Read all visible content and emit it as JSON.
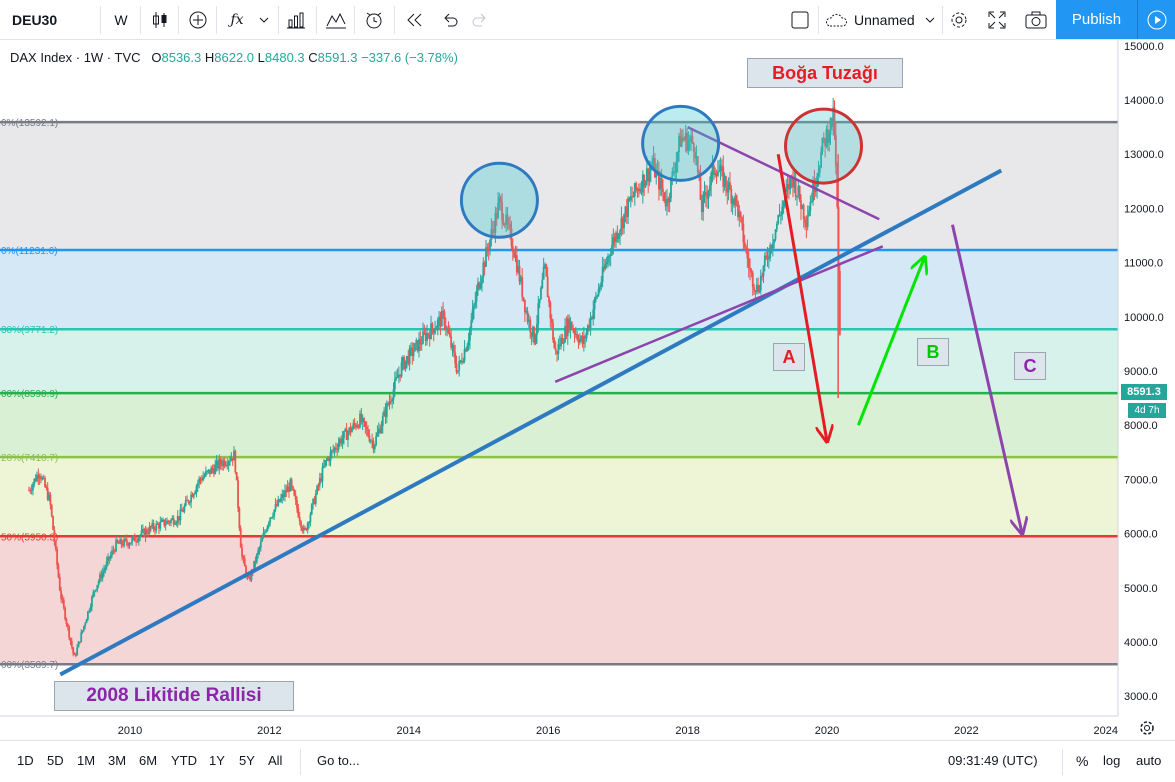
{
  "toolbar": {
    "symbol": "DEU30",
    "interval": "W",
    "layout_name": "Unnamed",
    "publish_label": "Publish"
  },
  "legend": {
    "title": "DAX Index · 1W · TVC",
    "o_label": "O",
    "o": "8536.3",
    "h_label": "H",
    "h": "8622.0",
    "l_label": "L",
    "l": "8480.3",
    "c_label": "C",
    "c": "8591.3",
    "change": "−337.6 (−3.78%)"
  },
  "price_badge": "8591.3",
  "countdown_badge": "4d 7h",
  "bottom": {
    "ranges": [
      "1D",
      "5D",
      "1M",
      "3M",
      "6M",
      "YTD",
      "1Y",
      "5Y",
      "All"
    ],
    "goto": "Go to...",
    "time": "09:31:49 (UTC)",
    "percent": "%",
    "log": "log",
    "auto": "auto"
  },
  "annotations": {
    "bull_trap": "Boğa Tuzağı",
    "rally": "2008 Likitide Rallisi",
    "a": "A",
    "b": "B",
    "c": "C"
  },
  "colors": {
    "up": "#26a69a",
    "down": "#ef5350",
    "trend_blue": "#2e7ac0",
    "triangle_purple": "#8e44ad",
    "arrow_red": "#e51c23",
    "arrow_green": "#00e600",
    "circle_blue": "#2e7ac0",
    "circle_red": "#cc3333"
  },
  "chart_data": {
    "type": "candlestick",
    "title": "DAX Index · 1W · TVC",
    "y_axis": {
      "min": 2600,
      "max": 15300,
      "ticks": [
        3000,
        4000,
        5000,
        6000,
        7000,
        8000,
        9000,
        10000,
        11000,
        12000,
        13000,
        14000,
        15000
      ]
    },
    "x_axis": {
      "start": 2008.55,
      "end": 2024.0,
      "ticks": [
        2010,
        2012,
        2014,
        2016,
        2018,
        2020,
        2022,
        2024
      ]
    },
    "fib_levels": [
      {
        "label": "0%(13592.1)",
        "value": 13592.1,
        "color": "#787b86"
      },
      {
        "label": "0%(11231.6)",
        "value": 11231.6,
        "color": "#2196f3"
      },
      {
        "label": "30%(9771.2)",
        "value": 9771.2,
        "color": "#26c6b0"
      },
      {
        "label": "00%(8590.9)",
        "value": 8590.9,
        "color": "#22b14c"
      },
      {
        "label": "20%(7410.7)",
        "value": 7410.7,
        "color": "#8bc34a"
      },
      {
        "label": "50%(5950.3)",
        "value": 5950.3,
        "color": "#e53935"
      },
      {
        "label": "00%(3589.7)",
        "value": 3589.7,
        "color": "#787b86"
      }
    ],
    "price_path": [
      [
        2008.55,
        6800
      ],
      [
        2008.7,
        7150
      ],
      [
        2008.85,
        6600
      ],
      [
        2009.0,
        4900
      ],
      [
        2009.2,
        3700
      ],
      [
        2009.5,
        5000
      ],
      [
        2009.8,
        5800
      ],
      [
        2010.0,
        5850
      ],
      [
        2010.3,
        6100
      ],
      [
        2010.7,
        6300
      ],
      [
        2011.0,
        7000
      ],
      [
        2011.3,
        7300
      ],
      [
        2011.5,
        7450
      ],
      [
        2011.6,
        5600
      ],
      [
        2011.7,
        5100
      ],
      [
        2012.0,
        6300
      ],
      [
        2012.3,
        6900
      ],
      [
        2012.5,
        6000
      ],
      [
        2012.8,
        7300
      ],
      [
        2013.0,
        7700
      ],
      [
        2013.3,
        8100
      ],
      [
        2013.5,
        7650
      ],
      [
        2013.9,
        9100
      ],
      [
        2014.2,
        9600
      ],
      [
        2014.5,
        10000
      ],
      [
        2014.7,
        9000
      ],
      [
        2014.85,
        9600
      ],
      [
        2015.0,
        10600
      ],
      [
        2015.3,
        12100
      ],
      [
        2015.5,
        11300
      ],
      [
        2015.7,
        10000
      ],
      [
        2015.8,
        9600
      ],
      [
        2015.95,
        10900
      ],
      [
        2016.1,
        9300
      ],
      [
        2016.3,
        9900
      ],
      [
        2016.5,
        9500
      ],
      [
        2016.9,
        11300
      ],
      [
        2017.2,
        12200
      ],
      [
        2017.5,
        12800
      ],
      [
        2017.7,
        12100
      ],
      [
        2017.9,
        13300
      ],
      [
        2018.1,
        13200
      ],
      [
        2018.2,
        12000
      ],
      [
        2018.4,
        12800
      ],
      [
        2018.7,
        12100
      ],
      [
        2018.9,
        10800
      ],
      [
        2019.0,
        10500
      ],
      [
        2019.3,
        11800
      ],
      [
        2019.5,
        12600
      ],
      [
        2019.7,
        11800
      ],
      [
        2019.95,
        13200
      ],
      [
        2020.1,
        13700
      ],
      [
        2020.15,
        11800
      ],
      [
        2020.2,
        8600
      ]
    ],
    "drawings": [
      {
        "type": "trendline",
        "name": "blue uptrend",
        "from": [
          2009.0,
          3400
        ],
        "to": [
          2022.5,
          12700
        ]
      },
      {
        "type": "trendline",
        "name": "triangle lower",
        "from": [
          2016.1,
          8800
        ],
        "to": [
          2020.8,
          11300
        ]
      },
      {
        "type": "trendline",
        "name": "triangle upper",
        "from": [
          2018.0,
          13500
        ],
        "to": [
          2020.75,
          11800
        ]
      },
      {
        "type": "arrow",
        "label": "A",
        "from": [
          2019.3,
          13000
        ],
        "to": [
          2020.0,
          7700
        ]
      },
      {
        "type": "arrow",
        "label": "B",
        "from": [
          2020.45,
          8000
        ],
        "to": [
          2021.4,
          11100
        ]
      },
      {
        "type": "arrow",
        "label": "C",
        "from": [
          2021.8,
          11700
        ],
        "to": [
          2022.8,
          6000
        ]
      }
    ],
    "last_price": 8591.3
  }
}
